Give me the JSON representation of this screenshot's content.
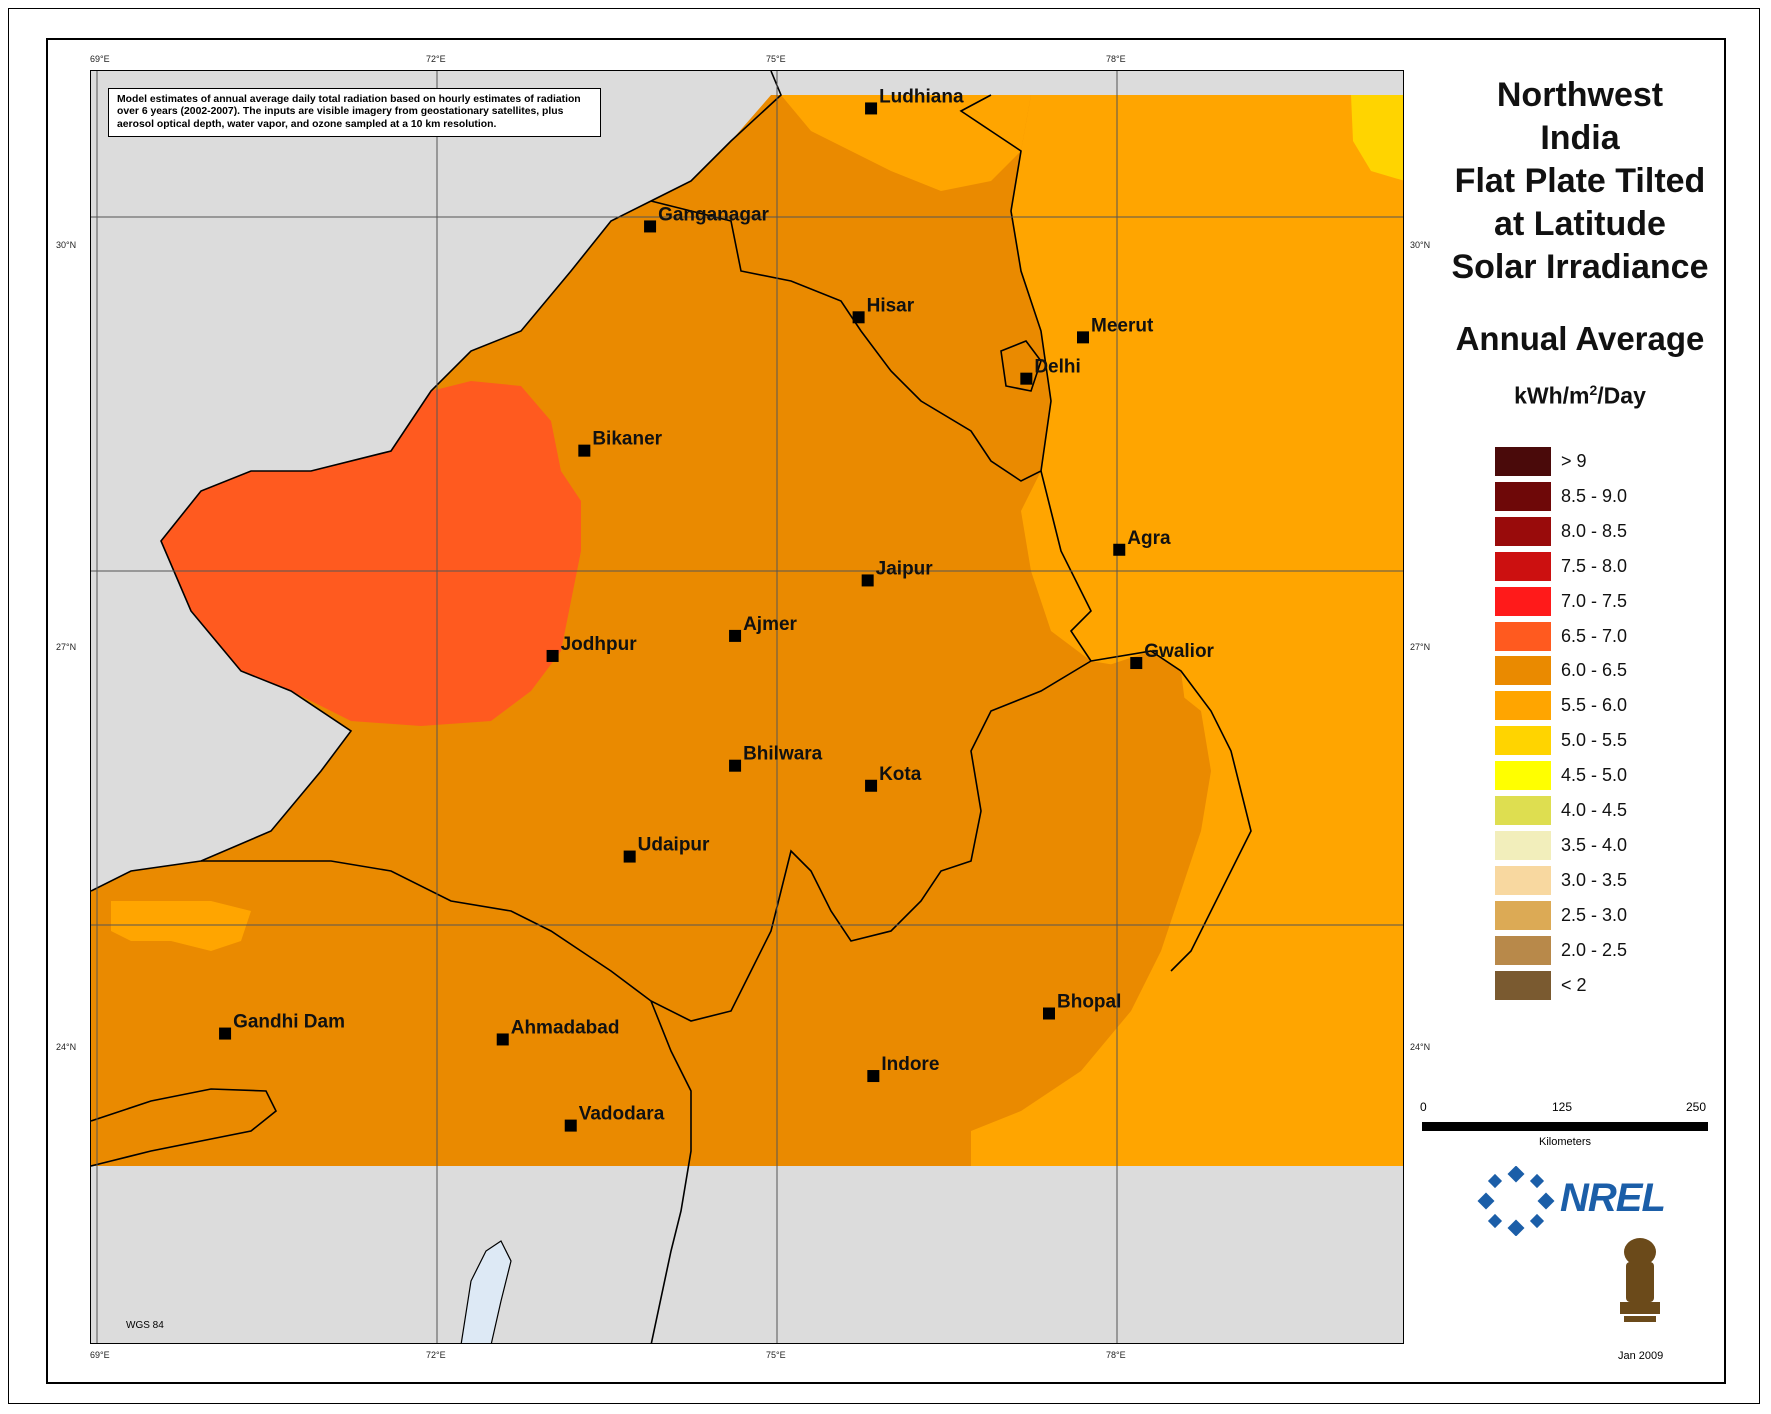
{
  "title_lines": [
    "Northwest",
    "India",
    "Flat Plate Tilted",
    "at Latitude",
    "Solar Irradiance"
  ],
  "subtitle": "Annual Average",
  "unit": {
    "base": "kWh/m",
    "sup": "2",
    "tail": "/Day"
  },
  "note": "Model estimates of annual average daily total radiation based on hourly estimates of radiation over 6 years (2002-2007). The inputs are visible imagery from geostationary satellites, plus aerosol optical depth, water vapor, and ozone sampled at a 10 km resolution.",
  "graticule": {
    "lon_top": [
      "69°E",
      "72°E",
      "75°E",
      "78°E"
    ],
    "lon_bottom": [
      "69°E",
      "72°E",
      "75°E",
      "78°E"
    ],
    "lat_left": [
      "30°N",
      "27°N",
      "24°N"
    ],
    "lat_right": [
      "30°N",
      "27°N",
      "24°N"
    ]
  },
  "legend": [
    {
      "label": "> 9",
      "color": "#4a0a0a"
    },
    {
      "label": "8.5 - 9.0",
      "color": "#6e0808"
    },
    {
      "label": "8.0 - 8.5",
      "color": "#990b0b"
    },
    {
      "label": "7.5 - 8.0",
      "color": "#cc1010"
    },
    {
      "label": "7.0 - 7.5",
      "color": "#ff1a1a"
    },
    {
      "label": "6.5 - 7.0",
      "color": "#ff5a1f"
    },
    {
      "label": "6.0 - 6.5",
      "color": "#ea8a00"
    },
    {
      "label": "5.5 - 6.0",
      "color": "#ffa500"
    },
    {
      "label": "5.0 - 5.5",
      "color": "#ffd400"
    },
    {
      "label": "4.5 - 5.0",
      "color": "#ffff00"
    },
    {
      "label": "4.0 - 4.5",
      "color": "#dede50"
    },
    {
      "label": "3.5 - 4.0",
      "color": "#f2eebb"
    },
    {
      "label": "3.0 - 3.5",
      "color": "#f8d8a0"
    },
    {
      "label": "2.5 - 3.0",
      "color": "#dcaa55"
    },
    {
      "label": "2.0 - 2.5",
      "color": "#b8894a"
    },
    {
      "label": "< 2",
      "color": "#7a5a30"
    }
  ],
  "cities": [
    {
      "name": "Ludhiana",
      "lon": 75.83,
      "lat": 30.92
    },
    {
      "name": "Ganganagar",
      "lon": 73.88,
      "lat": 29.92
    },
    {
      "name": "Hisar",
      "lon": 75.72,
      "lat": 29.15
    },
    {
      "name": "Meerut",
      "lon": 77.7,
      "lat": 28.98
    },
    {
      "name": "Delhi",
      "lon": 77.2,
      "lat": 28.63
    },
    {
      "name": "Bikaner",
      "lon": 73.3,
      "lat": 28.02
    },
    {
      "name": "Agra",
      "lon": 78.02,
      "lat": 27.18
    },
    {
      "name": "Jaipur",
      "lon": 75.8,
      "lat": 26.92
    },
    {
      "name": "Ajmer",
      "lon": 74.63,
      "lat": 26.45
    },
    {
      "name": "Jodhpur",
      "lon": 73.02,
      "lat": 26.28
    },
    {
      "name": "Gwalior",
      "lon": 78.17,
      "lat": 26.22
    },
    {
      "name": "Bhilwara",
      "lon": 74.63,
      "lat": 25.35
    },
    {
      "name": "Kota",
      "lon": 75.83,
      "lat": 25.18
    },
    {
      "name": "Udaipur",
      "lon": 73.7,
      "lat": 24.58
    },
    {
      "name": "Bhopal",
      "lon": 77.4,
      "lat": 23.25
    },
    {
      "name": "Gandhi Dam",
      "lon": 70.13,
      "lat": 23.08
    },
    {
      "name": "Ahmadabad",
      "lon": 72.58,
      "lat": 23.03
    },
    {
      "name": "Indore",
      "lon": 75.85,
      "lat": 22.72
    },
    {
      "name": "Vadodara",
      "lon": 73.18,
      "lat": 22.3
    }
  ],
  "scale": {
    "ticks": [
      "0",
      "125",
      "250"
    ],
    "unit": "Kilometers"
  },
  "logo": "NREL",
  "date": "Jan 2009",
  "datum": "WGS 84"
}
